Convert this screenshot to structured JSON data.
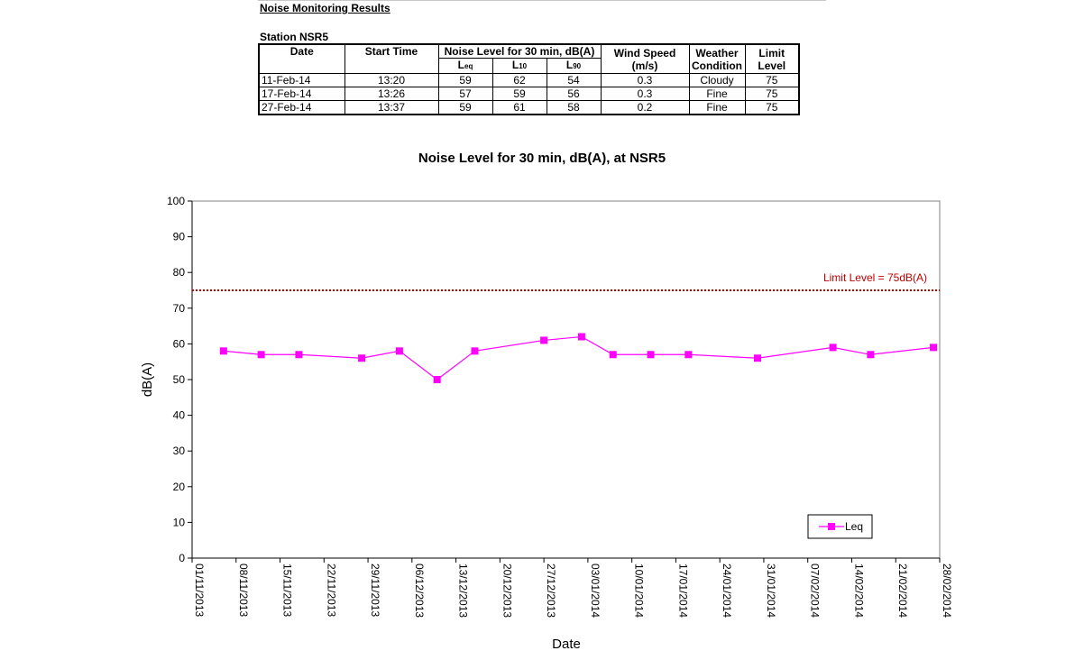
{
  "report": {
    "heading": "Noise Monitoring Results",
    "station": "Station NSR5",
    "table": {
      "headers": {
        "date": "Date",
        "start_time": "Start Time",
        "noise_level": "Noise Level for 30 min, dB(A)",
        "leq": "L",
        "leq_sub": "eq",
        "l10": "L",
        "l10_sub": "10",
        "l90": "L",
        "l90_sub": "90",
        "wind_speed": "Wind Speed",
        "wind_unit": "(m/s)",
        "weather": "Weather",
        "weather2": "Condition",
        "limit": "Limit",
        "limit2": "Level"
      },
      "rows": [
        {
          "date": "11-Feb-14",
          "time": "13:20",
          "leq": "59",
          "l10": "62",
          "l90": "54",
          "wind": "0.3",
          "weather": "Cloudy",
          "limit": "75"
        },
        {
          "date": "17-Feb-14",
          "time": "13:26",
          "leq": "57",
          "l10": "59",
          "l90": "56",
          "wind": "0.3",
          "weather": "Fine",
          "limit": "75"
        },
        {
          "date": "27-Feb-14",
          "time": "13:37",
          "leq": "59",
          "l10": "61",
          "l90": "58",
          "wind": "0.2",
          "weather": "Fine",
          "limit": "75"
        }
      ]
    }
  },
  "chart_data": {
    "type": "line",
    "title": "Noise Level for 30 min, dB(A), at NSR5",
    "xlabel": "Date",
    "ylabel": "dB(A)",
    "ylim": [
      0,
      100
    ],
    "yticks": [
      0,
      10,
      20,
      30,
      40,
      50,
      60,
      70,
      80,
      90,
      100
    ],
    "xlim": [
      "2013-11-01",
      "2014-02-28"
    ],
    "xtick_labels": [
      "01/11/2013",
      "08/11/2013",
      "15/11/2013",
      "22/11/2013",
      "29/11/2013",
      "06/12/2013",
      "13/12/2013",
      "20/12/2013",
      "27/12/2013",
      "03/01/2014",
      "10/01/2014",
      "17/01/2014",
      "24/01/2014",
      "31/01/2014",
      "07/02/2014",
      "14/02/2014",
      "21/02/2014",
      "28/02/2014"
    ],
    "grid": false,
    "legend_position": "bottom-right",
    "limit_line": {
      "value": 75,
      "label": "Limit Level = 75dB(A)",
      "color": "#c00000"
    },
    "series": [
      {
        "name": "Leq",
        "color": "#ff00ff",
        "x": [
          "2013-11-06",
          "2013-11-12",
          "2013-11-18",
          "2013-11-28",
          "2013-12-04",
          "2013-12-10",
          "2013-12-16",
          "2013-12-27",
          "2014-01-02",
          "2014-01-07",
          "2014-01-13",
          "2014-01-19",
          "2014-01-30",
          "2014-02-11",
          "2014-02-17",
          "2014-02-27"
        ],
        "values": [
          58,
          57,
          57,
          56,
          58,
          50,
          58,
          61,
          62,
          57,
          57,
          57,
          56,
          59,
          57,
          59
        ]
      }
    ]
  }
}
